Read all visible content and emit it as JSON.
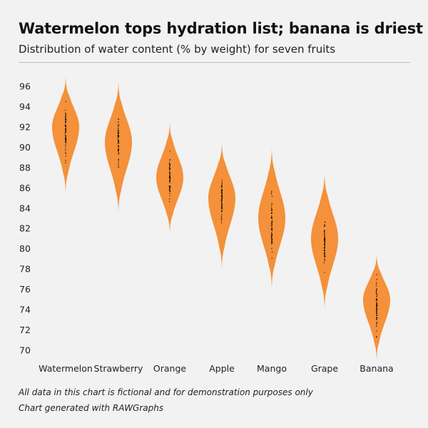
{
  "header": {
    "title": "Watermelon tops hydration list; banana is driest",
    "subtitle": "Distribution of water content (% by weight) for seven fruits"
  },
  "footer": {
    "note": "All data in this chart is fictional and for demonstration purposes only",
    "credit": "Chart generated with RAWGraphs"
  },
  "colors": {
    "violin_fill": "#f4913a",
    "points": "#000000",
    "background": "#f2f2f2"
  },
  "chart_data": {
    "type": "violin",
    "categories": [
      "Watermelon",
      "Strawberry",
      "Orange",
      "Apple",
      "Mango",
      "Grape",
      "Banana"
    ],
    "ylim": [
      69,
      97
    ],
    "yticks": [
      70,
      72,
      74,
      76,
      78,
      80,
      82,
      84,
      86,
      88,
      90,
      92,
      94,
      96
    ],
    "grid": false,
    "series": [
      {
        "category": "Watermelon",
        "median": 92.0,
        "min": 85.5,
        "max": 97.0,
        "points_min": 88.0,
        "points_max": 95.5
      },
      {
        "category": "Strawberry",
        "median": 90.5,
        "min": 83.5,
        "max": 96.5,
        "points_min": 87.0,
        "points_max": 94.5
      },
      {
        "category": "Orange",
        "median": 87.0,
        "min": 81.5,
        "max": 92.5,
        "points_min": 84.0,
        "points_max": 90.0
      },
      {
        "category": "Apple",
        "median": 85.0,
        "min": 78.0,
        "max": 90.5,
        "points_min": 81.5,
        "points_max": 88.0
      },
      {
        "category": "Mango",
        "median": 83.0,
        "min": 76.0,
        "max": 90.0,
        "points_min": 78.5,
        "points_max": 86.5
      },
      {
        "category": "Grape",
        "median": 81.0,
        "min": 74.0,
        "max": 87.5,
        "points_min": 77.0,
        "points_max": 84.5
      },
      {
        "category": "Banana",
        "median": 75.0,
        "min": 69.0,
        "max": 79.5,
        "points_min": 70.5,
        "points_max": 78.0
      }
    ]
  }
}
